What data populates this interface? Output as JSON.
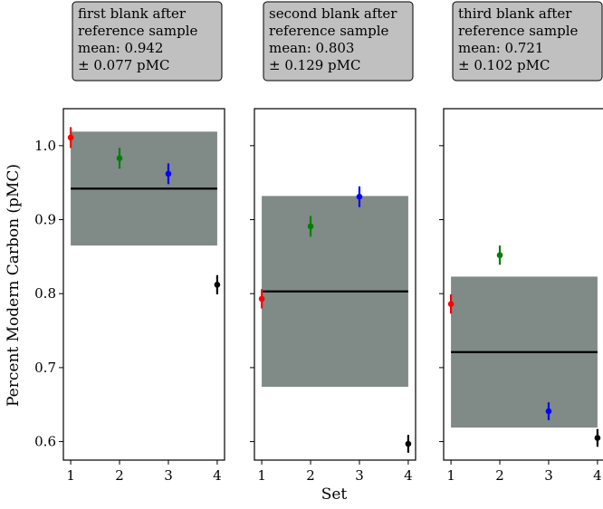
{
  "figure": {
    "ylabel": "Percent Modern Carbon (pMC)",
    "xlabel": "Set"
  },
  "chart_data": [
    {
      "type": "scatter",
      "panel": "first",
      "annotation": [
        "first blank after",
        "reference sample",
        "mean: 0.942",
        "± 0.077 pMC"
      ],
      "mean": 0.942,
      "band": [
        0.865,
        1.019
      ],
      "x": [
        1,
        2,
        3,
        4
      ],
      "y": [
        1.011,
        0.983,
        0.962,
        0.812
      ],
      "yerr": [
        0.014,
        0.014,
        0.014,
        0.013
      ],
      "point_colors": [
        "#ff0000",
        "#008000",
        "#0000ff",
        "#000000"
      ],
      "band_color": "#808a87",
      "xticks": [
        "1",
        "2",
        "3",
        "4"
      ],
      "yticks": [
        "0.6",
        "0.7",
        "0.8",
        "0.9",
        "1.0"
      ],
      "ylim": [
        0.575,
        1.05
      ],
      "grid": false
    },
    {
      "type": "scatter",
      "panel": "second",
      "annotation": [
        "second blank after",
        "reference sample",
        "mean: 0.803",
        "± 0.129 pMC"
      ],
      "mean": 0.803,
      "band": [
        0.674,
        0.932
      ],
      "x": [
        1,
        2,
        3,
        4
      ],
      "y": [
        0.793,
        0.891,
        0.931,
        0.597
      ],
      "yerr": [
        0.013,
        0.014,
        0.014,
        0.012
      ],
      "point_colors": [
        "#ff0000",
        "#008000",
        "#0000ff",
        "#000000"
      ],
      "band_color": "#808a87",
      "xticks": [
        "1",
        "2",
        "3",
        "4"
      ],
      "yticks": [],
      "ylim": [
        0.575,
        1.05
      ],
      "grid": false
    },
    {
      "type": "scatter",
      "panel": "third",
      "annotation": [
        "third blank after",
        "reference sample",
        "mean: 0.721",
        "± 0.102 pMC"
      ],
      "mean": 0.721,
      "band": [
        0.619,
        0.823
      ],
      "x": [
        1,
        2,
        3,
        4
      ],
      "y": [
        0.786,
        0.852,
        0.641,
        0.605
      ],
      "yerr": [
        0.013,
        0.013,
        0.012,
        0.012
      ],
      "point_colors": [
        "#ff0000",
        "#008000",
        "#0000ff",
        "#000000"
      ],
      "band_color": "#808a87",
      "xticks": [
        "1",
        "2",
        "3",
        "4"
      ],
      "yticks": [],
      "ylim": [
        0.575,
        1.05
      ],
      "grid": false
    }
  ]
}
